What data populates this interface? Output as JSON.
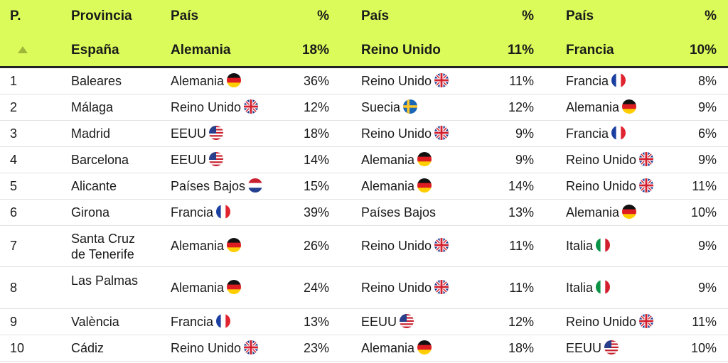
{
  "header": {
    "rank": "P.",
    "province": "Provincia",
    "country1": "País",
    "pct1": "%",
    "country2": "País",
    "pct2": "%",
    "country3": "País",
    "pct3": "%",
    "sort_icon": "triangle-up-icon",
    "total_label": "España",
    "total_country1": "Alemania",
    "total_pct1": "18%",
    "total_country2": "Reino Unido",
    "total_pct2": "11%",
    "total_country3": "Francia",
    "total_pct3": "10%"
  },
  "rows": [
    {
      "rank": "1",
      "province": "Baleares",
      "c1": "Alemania",
      "f1": "de",
      "p1": "36%",
      "c2": "Reino Unido",
      "f2": "uk",
      "p2": "11%",
      "c3": "Francia",
      "f3": "fr",
      "p3": "8%"
    },
    {
      "rank": "2",
      "province": "Málaga",
      "c1": "Reino Unido",
      "f1": "uk",
      "p1": "12%",
      "c2": "Suecia",
      "f2": "se",
      "p2": "12%",
      "c3": "Alemania",
      "f3": "de",
      "p3": "9%"
    },
    {
      "rank": "3",
      "province": "Madrid",
      "c1": "EEUU",
      "f1": "us",
      "p1": "18%",
      "c2": "Reino Unido",
      "f2": "uk",
      "p2": "9%",
      "c3": "Francia",
      "f3": "fr",
      "p3": "6%"
    },
    {
      "rank": "4",
      "province": "Barcelona",
      "c1": "EEUU",
      "f1": "us",
      "p1": "14%",
      "c2": "Alemania",
      "f2": "de",
      "p2": "9%",
      "c3": "Reino Unido",
      "f3": "uk",
      "p3": "9%"
    },
    {
      "rank": "5",
      "province": "Alicante",
      "c1": "Países Bajos",
      "f1": "nl",
      "p1": "15%",
      "c2": "Alemania",
      "f2": "de",
      "p2": "14%",
      "c3": "Reino Unido",
      "f3": "uk",
      "p3": "11%"
    },
    {
      "rank": "6",
      "province": "Girona",
      "c1": "Francia",
      "f1": "fr",
      "p1": "39%",
      "c2": "Países Bajos",
      "f2": "",
      "p2": "13%",
      "c3": "Alemania",
      "f3": "de",
      "p3": "10%"
    },
    {
      "rank": "7",
      "province": "Santa Cruz de Tenerife",
      "c1": "Alemania",
      "f1": "de",
      "p1": "26%",
      "c2": "Reino Unido",
      "f2": "uk",
      "p2": "11%",
      "c3": "Italia",
      "f3": "it",
      "p3": "9%"
    },
    {
      "rank": "8",
      "province": "Las Palmas",
      "c1": "Alemania",
      "f1": "de",
      "p1": "24%",
      "c2": "Reino Unido",
      "f2": "uk",
      "p2": "11%",
      "c3": "Italia",
      "f3": "it",
      "p3": "9%"
    },
    {
      "rank": "9",
      "province": "València",
      "c1": "Francia",
      "f1": "fr",
      "p1": "13%",
      "c2": "EEUU",
      "f2": "us",
      "p2": "12%",
      "c3": "Reino Unido",
      "f3": "uk",
      "p3": "11%"
    },
    {
      "rank": "10",
      "province": "Cádiz",
      "c1": "Reino Unido",
      "f1": "uk",
      "p1": "23%",
      "c2": "Alemania",
      "f2": "de",
      "p2": "18%",
      "c3": "EEUU",
      "f3": "us",
      "p3": "10%"
    }
  ],
  "colors": {
    "header_bg": "#dafb5a",
    "border": "#222222",
    "row_border": "#e2e2e2"
  }
}
